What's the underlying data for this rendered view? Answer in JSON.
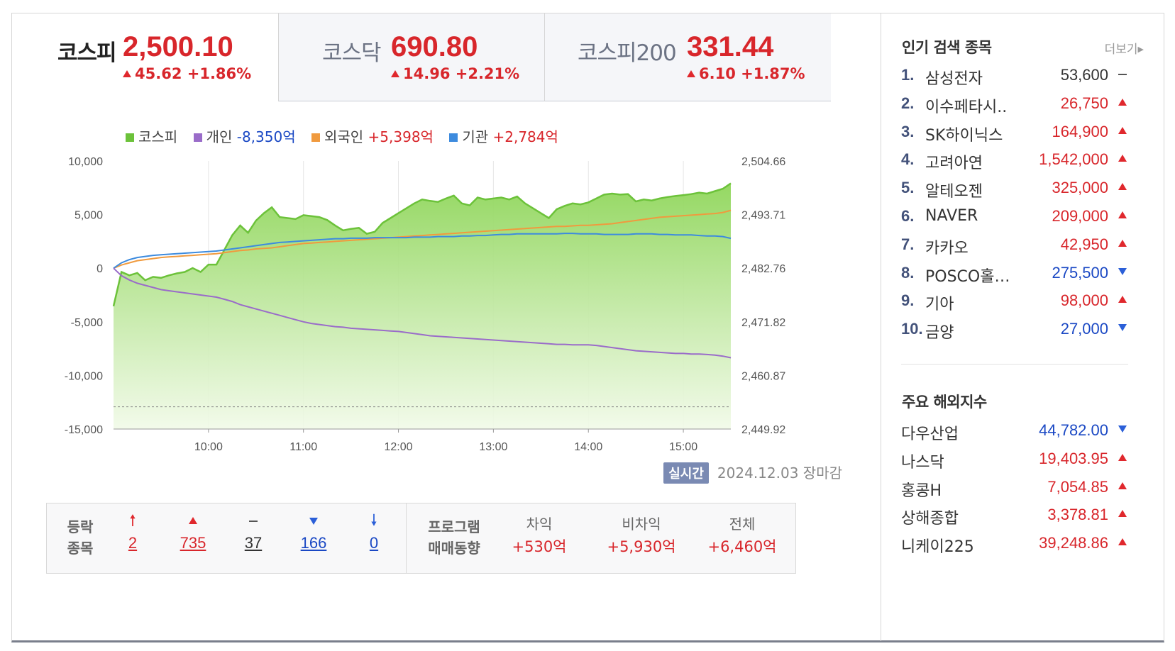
{
  "tabs": [
    {
      "name": "코스피",
      "value": "2,500.10",
      "change": "45.62 +1.86%"
    },
    {
      "name": "코스닥",
      "value": "690.80",
      "change": "14.96 +2.21%"
    },
    {
      "name": "코스피200",
      "value": "331.44",
      "change": "6.10 +1.87%"
    }
  ],
  "legend": {
    "kospi": "코스피",
    "individual": {
      "label": "개인",
      "value": "-8,350억"
    },
    "foreign": {
      "label": "외국인",
      "value": "+5,398억"
    },
    "institution": {
      "label": "기관",
      "value": "+2,784억"
    }
  },
  "colors": {
    "kospi": "#6cc23a",
    "individual": "#9a6cc9",
    "foreign": "#f09a3e",
    "institution": "#3d8bde",
    "up": "#d8262b",
    "down": "#1a48c4"
  },
  "chart_data": {
    "type": "line",
    "x_ticks": [
      "10:00",
      "11:00",
      "12:00",
      "13:00",
      "14:00",
      "15:00"
    ],
    "x_range": [
      "09:00",
      "15:30"
    ],
    "y_left_ticks": [
      "10,000",
      "5,000",
      "0",
      "-5,000",
      "-10,000",
      "-15,000"
    ],
    "y_left_range": [
      -15000,
      10000
    ],
    "y_right_ticks": [
      "2,504.66",
      "2,493.71",
      "2,482.76",
      "2,471.82",
      "2,460.87",
      "2,449.92"
    ],
    "y_right_range": [
      2449.92,
      2504.66
    ],
    "reference_line": 2454.47,
    "x": [
      "09:00",
      "09:05",
      "09:10",
      "09:15",
      "09:20",
      "09:25",
      "09:30",
      "09:35",
      "09:40",
      "09:45",
      "09:50",
      "09:55",
      "10:00",
      "10:05",
      "10:10",
      "10:15",
      "10:20",
      "10:25",
      "10:30",
      "10:35",
      "10:40",
      "10:45",
      "10:50",
      "10:55",
      "11:00",
      "11:05",
      "11:10",
      "11:15",
      "11:20",
      "11:25",
      "11:30",
      "11:35",
      "11:40",
      "11:45",
      "11:50",
      "11:55",
      "12:00",
      "12:05",
      "12:10",
      "12:15",
      "12:20",
      "12:25",
      "12:30",
      "12:35",
      "12:40",
      "12:45",
      "12:50",
      "12:55",
      "13:00",
      "13:05",
      "13:10",
      "13:15",
      "13:20",
      "13:25",
      "13:30",
      "13:35",
      "13:40",
      "13:45",
      "13:50",
      "13:55",
      "14:00",
      "14:05",
      "14:10",
      "14:15",
      "14:20",
      "14:25",
      "14:30",
      "14:35",
      "14:40",
      "14:45",
      "14:50",
      "14:55",
      "15:00",
      "15:05",
      "15:10",
      "15:15",
      "15:20",
      "15:25",
      "15:30"
    ],
    "series": [
      {
        "name": "코스피",
        "axis": "right",
        "values": [
          2475.0,
          2482.0,
          2481.3,
          2481.8,
          2480.3,
          2481.0,
          2480.8,
          2481.3,
          2481.7,
          2482.0,
          2482.8,
          2482.0,
          2483.5,
          2483.5,
          2486.5,
          2489.5,
          2491.5,
          2490.0,
          2492.5,
          2494.0,
          2495.2,
          2493.2,
          2493.0,
          2492.8,
          2493.6,
          2493.4,
          2493.2,
          2492.6,
          2491.5,
          2490.5,
          2490.8,
          2491.0,
          2489.8,
          2490.2,
          2492.0,
          2493.0,
          2494.0,
          2495.0,
          2496.0,
          2496.8,
          2496.5,
          2496.3,
          2497.0,
          2497.6,
          2496.0,
          2495.6,
          2497.2,
          2496.8,
          2497.0,
          2497.2,
          2496.8,
          2497.4,
          2496.0,
          2495.0,
          2494.0,
          2493.0,
          2494.8,
          2495.5,
          2496.0,
          2495.8,
          2496.2,
          2497.0,
          2497.8,
          2498.0,
          2497.8,
          2497.9,
          2496.4,
          2496.8,
          2496.6,
          2497.0,
          2497.3,
          2497.5,
          2497.7,
          2497.9,
          2498.2,
          2498.0,
          2498.5,
          2499.0,
          2500.1
        ]
      },
      {
        "name": "개인",
        "axis": "left",
        "values": [
          0,
          -700,
          -1100,
          -1400,
          -1600,
          -1800,
          -2000,
          -2100,
          -2200,
          -2300,
          -2400,
          -2500,
          -2600,
          -2700,
          -2900,
          -3100,
          -3400,
          -3600,
          -3800,
          -4000,
          -4200,
          -4400,
          -4600,
          -4800,
          -5000,
          -5150,
          -5250,
          -5350,
          -5450,
          -5500,
          -5600,
          -5650,
          -5700,
          -5750,
          -5800,
          -5850,
          -5900,
          -6000,
          -6100,
          -6200,
          -6300,
          -6350,
          -6400,
          -6450,
          -6500,
          -6550,
          -6600,
          -6650,
          -6700,
          -6750,
          -6800,
          -6850,
          -6900,
          -6950,
          -7000,
          -7050,
          -7100,
          -7100,
          -7150,
          -7150,
          -7150,
          -7200,
          -7300,
          -7400,
          -7500,
          -7600,
          -7700,
          -7750,
          -7800,
          -7850,
          -7900,
          -7950,
          -7950,
          -8000,
          -8000,
          -8050,
          -8100,
          -8200,
          -8350
        ]
      },
      {
        "name": "외국인",
        "axis": "left",
        "values": [
          0,
          300,
          500,
          700,
          800,
          900,
          1000,
          1050,
          1100,
          1150,
          1200,
          1250,
          1300,
          1350,
          1450,
          1550,
          1650,
          1700,
          1800,
          1850,
          1900,
          2000,
          2100,
          2200,
          2300,
          2350,
          2400,
          2450,
          2500,
          2550,
          2600,
          2650,
          2700,
          2750,
          2800,
          2850,
          2900,
          2950,
          3000,
          3050,
          3100,
          3150,
          3200,
          3250,
          3300,
          3350,
          3400,
          3450,
          3500,
          3550,
          3600,
          3650,
          3700,
          3750,
          3800,
          3850,
          3900,
          3900,
          3950,
          4000,
          4000,
          4050,
          4100,
          4150,
          4250,
          4350,
          4450,
          4550,
          4650,
          4750,
          4800,
          4850,
          4900,
          4950,
          5000,
          5050,
          5100,
          5200,
          5398
        ]
      },
      {
        "name": "기관",
        "axis": "left",
        "values": [
          0,
          500,
          800,
          1000,
          1100,
          1200,
          1250,
          1300,
          1350,
          1400,
          1450,
          1500,
          1550,
          1600,
          1700,
          1800,
          1900,
          2000,
          2100,
          2200,
          2300,
          2400,
          2450,
          2500,
          2550,
          2600,
          2650,
          2700,
          2750,
          2750,
          2800,
          2800,
          2800,
          2850,
          2850,
          2850,
          2850,
          2850,
          2900,
          2900,
          2900,
          2950,
          2950,
          2950,
          3000,
          3000,
          3050,
          3050,
          3100,
          3150,
          3150,
          3200,
          3200,
          3200,
          3200,
          3200,
          3200,
          3250,
          3250,
          3200,
          3200,
          3200,
          3150,
          3150,
          3150,
          3150,
          3200,
          3200,
          3200,
          3150,
          3150,
          3100,
          3100,
          3100,
          3050,
          3000,
          3000,
          2950,
          2784
        ]
      }
    ]
  },
  "meta": {
    "realtime": "실시간",
    "date": "2024.12.03",
    "status": "장마감"
  },
  "breadth": {
    "label_line1": "등락",
    "label_line2": "종목",
    "upper_limit": "2",
    "up": "735",
    "flat": "37",
    "down": "166",
    "lower_limit": "0"
  },
  "program": {
    "label_line1": "프로그램",
    "label_line2": "매매동향",
    "cols": [
      {
        "label": "차익",
        "value": "+530억"
      },
      {
        "label": "비차익",
        "value": "+5,930억"
      },
      {
        "label": "전체",
        "value": "+6,460억"
      }
    ]
  },
  "popular": {
    "title": "인기 검색 종목",
    "more": "더보기",
    "items": [
      {
        "rank": "1.",
        "name": "삼성전자",
        "price": "53,600",
        "dir": "flat"
      },
      {
        "rank": "2.",
        "name": "이수페타시..",
        "price": "26,750",
        "dir": "up"
      },
      {
        "rank": "3.",
        "name": "SK하이닉스",
        "price": "164,900",
        "dir": "up"
      },
      {
        "rank": "4.",
        "name": "고려아연",
        "price": "1,542,000",
        "dir": "up"
      },
      {
        "rank": "5.",
        "name": "알테오젠",
        "price": "325,000",
        "dir": "up"
      },
      {
        "rank": "6.",
        "name": "NAVER",
        "price": "209,000",
        "dir": "up"
      },
      {
        "rank": "7.",
        "name": "카카오",
        "price": "42,950",
        "dir": "up"
      },
      {
        "rank": "8.",
        "name": "POSCO홀…",
        "price": "275,500",
        "dir": "down"
      },
      {
        "rank": "9.",
        "name": "기아",
        "price": "98,000",
        "dir": "up"
      },
      {
        "rank": "10.",
        "name": "금양",
        "price": "27,000",
        "dir": "down"
      }
    ]
  },
  "world": {
    "title": "주요 해외지수",
    "items": [
      {
        "name": "다우산업",
        "value": "44,782.00",
        "dir": "down"
      },
      {
        "name": "나스닥",
        "value": "19,403.95",
        "dir": "up"
      },
      {
        "name": "홍콩H",
        "value": "7,054.85",
        "dir": "up"
      },
      {
        "name": "상해종합",
        "value": "3,378.81",
        "dir": "up"
      },
      {
        "name": "니케이225",
        "value": "39,248.86",
        "dir": "up"
      }
    ]
  }
}
